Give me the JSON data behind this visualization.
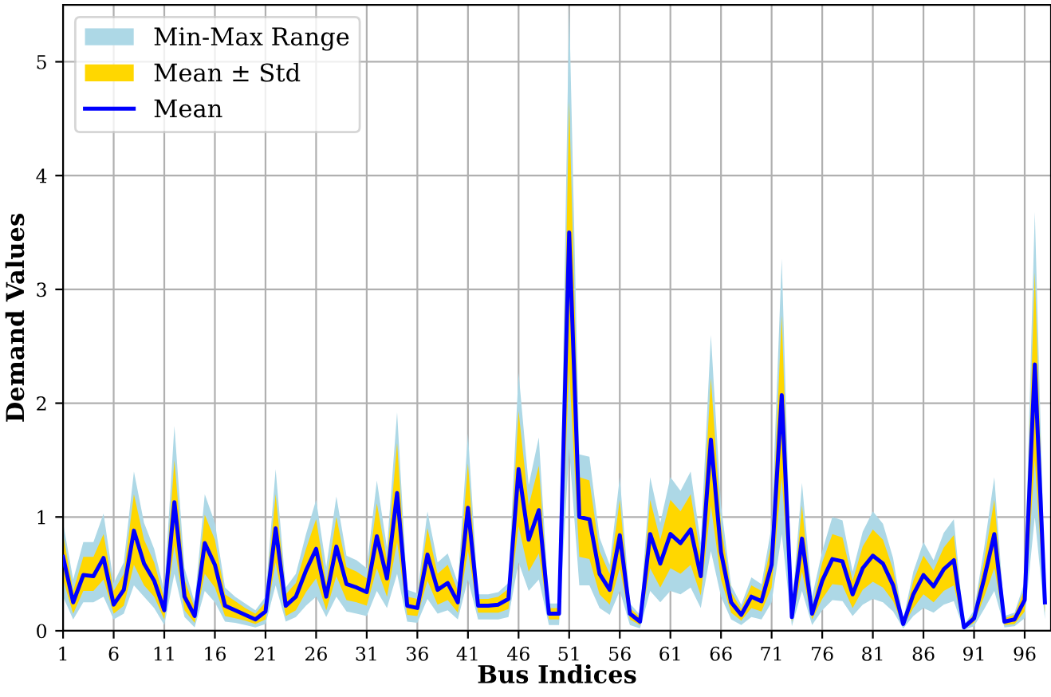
{
  "chart_data": {
    "type": "line",
    "xlabel": "Bus Indices",
    "ylabel": "Demand Values",
    "x": [
      1,
      2,
      3,
      4,
      5,
      6,
      7,
      8,
      9,
      10,
      11,
      12,
      13,
      14,
      15,
      16,
      17,
      18,
      19,
      20,
      21,
      22,
      23,
      24,
      25,
      26,
      27,
      28,
      29,
      30,
      31,
      32,
      33,
      34,
      35,
      36,
      37,
      38,
      39,
      40,
      41,
      42,
      43,
      44,
      45,
      46,
      47,
      48,
      49,
      50,
      51,
      52,
      53,
      54,
      55,
      56,
      57,
      58,
      59,
      60,
      61,
      62,
      63,
      64,
      65,
      66,
      67,
      68,
      69,
      70,
      71,
      72,
      73,
      74,
      75,
      76,
      77,
      78,
      79,
      80,
      81,
      82,
      83,
      84,
      85,
      86,
      87,
      88,
      89,
      90,
      91,
      92,
      93,
      94,
      95,
      96,
      97,
      98
    ],
    "xlim": [
      1,
      98.6
    ],
    "xticks": [
      1,
      6,
      11,
      16,
      21,
      26,
      31,
      36,
      41,
      46,
      51,
      56,
      61,
      66,
      71,
      76,
      81,
      86,
      91,
      96
    ],
    "ylim": [
      0,
      5.5
    ],
    "yticks": [
      0,
      1,
      2,
      3,
      4,
      5
    ],
    "grid": true,
    "legend": "top left",
    "series": [
      {
        "name": "Min-Max Range",
        "color": "#add8e6",
        "values": [
          null,
          null,
          null,
          null,
          null,
          null,
          null,
          null,
          null,
          null,
          null,
          null,
          null,
          null,
          null,
          null,
          null,
          null,
          null,
          null,
          null,
          null,
          null,
          null,
          null,
          null,
          null,
          null,
          null,
          null,
          null,
          null,
          null,
          null,
          null,
          null,
          null,
          null,
          null,
          null,
          null,
          null,
          null,
          null,
          null,
          null,
          null,
          null,
          null,
          null,
          null,
          null,
          null,
          null,
          null,
          null,
          null,
          null,
          null,
          null,
          null,
          null,
          null,
          null,
          null,
          null,
          null,
          null,
          null,
          null,
          null,
          null,
          null,
          null,
          null,
          null,
          null,
          null,
          null,
          null,
          null,
          null,
          null,
          null,
          null,
          null,
          null,
          null,
          null,
          null,
          null,
          null,
          null,
          null,
          null,
          null,
          null,
          null
        ],
        "lower": [
          0.3,
          0.1,
          0.25,
          0.25,
          0.3,
          0.1,
          0.15,
          0.4,
          0.3,
          0.2,
          0.05,
          0.5,
          0.12,
          0.03,
          0.35,
          0.25,
          0.08,
          0.07,
          0.05,
          0.03,
          0.06,
          0.4,
          0.08,
          0.12,
          0.22,
          0.3,
          0.12,
          0.3,
          0.17,
          0.15,
          0.13,
          0.35,
          0.2,
          0.5,
          0.08,
          0.07,
          0.28,
          0.15,
          0.18,
          0.1,
          0.45,
          0.1,
          0.1,
          0.1,
          0.12,
          0.6,
          0.35,
          0.45,
          0.05,
          0.05,
          1.6,
          0.4,
          0.4,
          0.2,
          0.14,
          0.35,
          0.05,
          0.02,
          0.35,
          0.25,
          0.35,
          0.32,
          0.38,
          0.2,
          0.7,
          0.3,
          0.1,
          0.05,
          0.12,
          0.1,
          0.25,
          0.85,
          0.04,
          0.35,
          0.05,
          0.18,
          0.27,
          0.26,
          0.13,
          0.23,
          0.28,
          0.25,
          0.17,
          0.02,
          0.13,
          0.2,
          0.16,
          0.23,
          0.26,
          0.01,
          0.04,
          0.19,
          0.35,
          0.03,
          0.04,
          0.11,
          1.0,
          0.1
        ],
        "upper": [
          0.95,
          0.45,
          0.78,
          0.78,
          1.03,
          0.42,
          0.6,
          1.4,
          0.95,
          0.72,
          0.35,
          1.8,
          0.55,
          0.25,
          1.2,
          0.95,
          0.38,
          0.3,
          0.24,
          0.18,
          0.3,
          1.42,
          0.38,
          0.5,
          0.85,
          1.15,
          0.56,
          1.18,
          0.66,
          0.62,
          0.55,
          1.32,
          0.73,
          1.92,
          0.36,
          0.33,
          1.05,
          0.6,
          0.68,
          0.42,
          1.73,
          0.32,
          0.32,
          0.34,
          0.42,
          2.27,
          1.28,
          1.7,
          0.24,
          0.24,
          5.5,
          1.55,
          1.53,
          0.82,
          0.58,
          1.35,
          0.24,
          0.14,
          1.35,
          0.95,
          1.35,
          1.23,
          1.4,
          0.77,
          2.6,
          1.1,
          0.4,
          0.23,
          0.47,
          0.41,
          0.92,
          3.27,
          0.19,
          1.3,
          0.3,
          0.7,
          1.0,
          0.97,
          0.52,
          0.87,
          1.05,
          0.94,
          0.64,
          0.1,
          0.52,
          0.78,
          0.62,
          0.86,
          0.98,
          0.05,
          0.18,
          0.73,
          1.35,
          0.13,
          0.16,
          0.43,
          3.68,
          0.4
        ]
      },
      {
        "name": "Mean ± Std",
        "color": "#ffd700",
        "values": [
          null,
          null,
          null,
          null,
          null,
          null,
          null,
          null,
          null,
          null,
          null,
          null,
          null,
          null,
          null,
          null,
          null,
          null,
          null,
          null,
          null,
          null,
          null,
          null,
          null,
          null,
          null,
          null,
          null,
          null,
          null,
          null,
          null,
          null,
          null,
          null,
          null,
          null,
          null,
          null,
          null,
          null,
          null,
          null,
          null,
          null,
          null,
          null,
          null,
          null,
          null,
          null,
          null,
          null,
          null,
          null,
          null,
          null,
          null,
          null,
          null,
          null,
          null,
          null,
          null,
          null,
          null,
          null,
          null,
          null,
          null,
          null,
          null,
          null,
          null,
          null,
          null,
          null,
          null,
          null,
          null,
          null,
          null,
          null,
          null,
          null,
          null,
          null,
          null,
          null,
          null,
          null,
          null,
          null,
          null,
          null,
          null,
          null
        ],
        "lower": [
          0.45,
          0.15,
          0.35,
          0.35,
          0.45,
          0.15,
          0.22,
          0.58,
          0.4,
          0.3,
          0.1,
          0.75,
          0.18,
          0.07,
          0.5,
          0.38,
          0.13,
          0.11,
          0.09,
          0.06,
          0.1,
          0.6,
          0.13,
          0.18,
          0.34,
          0.46,
          0.18,
          0.48,
          0.27,
          0.25,
          0.22,
          0.55,
          0.3,
          0.78,
          0.14,
          0.13,
          0.44,
          0.23,
          0.27,
          0.16,
          0.7,
          0.16,
          0.16,
          0.16,
          0.19,
          0.92,
          0.52,
          0.68,
          0.1,
          0.1,
          2.3,
          0.65,
          0.63,
          0.32,
          0.23,
          0.55,
          0.1,
          0.05,
          0.55,
          0.38,
          0.55,
          0.5,
          0.58,
          0.31,
          1.1,
          0.45,
          0.16,
          0.09,
          0.2,
          0.17,
          0.38,
          1.35,
          0.08,
          0.52,
          0.1,
          0.28,
          0.41,
          0.4,
          0.2,
          0.36,
          0.43,
          0.38,
          0.26,
          0.04,
          0.2,
          0.32,
          0.25,
          0.35,
          0.4,
          0.02,
          0.07,
          0.3,
          0.55,
          0.05,
          0.06,
          0.17,
          1.5,
          0.16
        ],
        "upper": [
          0.85,
          0.35,
          0.65,
          0.65,
          0.85,
          0.35,
          0.5,
          1.2,
          0.8,
          0.6,
          0.28,
          1.5,
          0.45,
          0.2,
          1.02,
          0.8,
          0.32,
          0.26,
          0.2,
          0.15,
          0.25,
          1.2,
          0.32,
          0.42,
          0.72,
          0.98,
          0.42,
          1.0,
          0.56,
          0.52,
          0.46,
          1.12,
          0.62,
          1.65,
          0.3,
          0.28,
          0.9,
          0.5,
          0.58,
          0.35,
          1.47,
          0.28,
          0.28,
          0.3,
          0.37,
          1.93,
          1.1,
          1.45,
          0.2,
          0.2,
          4.65,
          1.35,
          1.32,
          0.7,
          0.5,
          1.15,
          0.2,
          0.12,
          1.15,
          0.8,
          1.15,
          1.05,
          1.2,
          0.65,
          2.22,
          0.93,
          0.34,
          0.19,
          0.4,
          0.35,
          0.78,
          2.77,
          0.16,
          1.1,
          0.2,
          0.6,
          0.85,
          0.82,
          0.44,
          0.74,
          0.89,
          0.8,
          0.54,
          0.08,
          0.44,
          0.66,
          0.53,
          0.73,
          0.84,
          0.04,
          0.15,
          0.62,
          1.15,
          0.11,
          0.14,
          0.37,
          3.15,
          0.34
        ]
      },
      {
        "name": "Mean",
        "color": "#0000ff",
        "values": [
          0.65,
          0.25,
          0.49,
          0.48,
          0.64,
          0.23,
          0.36,
          0.88,
          0.59,
          0.44,
          0.18,
          1.13,
          0.3,
          0.13,
          0.77,
          0.58,
          0.22,
          0.18,
          0.14,
          0.1,
          0.17,
          0.9,
          0.22,
          0.3,
          0.53,
          0.72,
          0.3,
          0.74,
          0.41,
          0.38,
          0.34,
          0.83,
          0.46,
          1.21,
          0.22,
          0.2,
          0.67,
          0.36,
          0.42,
          0.25,
          1.08,
          0.22,
          0.22,
          0.23,
          0.28,
          1.42,
          0.8,
          1.06,
          0.15,
          0.15,
          3.5,
          1.0,
          0.98,
          0.5,
          0.36,
          0.84,
          0.15,
          0.08,
          0.85,
          0.59,
          0.85,
          0.77,
          0.89,
          0.48,
          1.68,
          0.69,
          0.25,
          0.14,
          0.3,
          0.26,
          0.58,
          2.07,
          0.12,
          0.81,
          0.15,
          0.44,
          0.63,
          0.61,
          0.32,
          0.55,
          0.66,
          0.59,
          0.4,
          0.06,
          0.32,
          0.49,
          0.39,
          0.54,
          0.62,
          0.03,
          0.11,
          0.46,
          0.85,
          0.08,
          0.1,
          0.27,
          2.34,
          0.25
        ]
      }
    ]
  }
}
